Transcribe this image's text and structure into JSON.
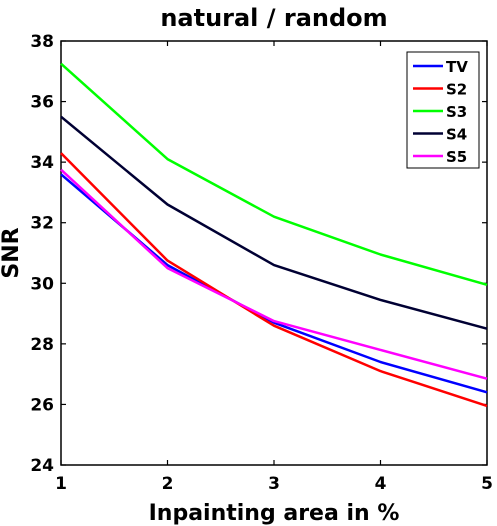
{
  "chart_data": {
    "type": "line",
    "title": "natural / random",
    "xlabel": "Inpainting area in %",
    "ylabel": "SNR",
    "x": [
      1,
      2,
      3,
      4,
      5
    ],
    "xlim": [
      1,
      5
    ],
    "ylim": [
      24,
      38
    ],
    "xticks": [
      "1",
      "2",
      "3",
      "4",
      "5"
    ],
    "yticks": [
      "24",
      "26",
      "28",
      "30",
      "32",
      "34",
      "36",
      "38"
    ],
    "grid": false,
    "legend_position": "top-right",
    "series": [
      {
        "name": "TV",
        "color": "#0000ff",
        "values": [
          33.6,
          30.6,
          28.7,
          27.4,
          26.4
        ]
      },
      {
        "name": "S2",
        "color": "#ff0000",
        "values": [
          34.3,
          30.75,
          28.6,
          27.1,
          25.95
        ]
      },
      {
        "name": "S3",
        "color": "#00ff00",
        "values": [
          37.25,
          34.1,
          32.2,
          30.95,
          29.95
        ]
      },
      {
        "name": "S4",
        "color": "#000033",
        "values": [
          35.5,
          32.6,
          30.6,
          29.45,
          28.5
        ]
      },
      {
        "name": "S5",
        "color": "#ff00ff",
        "values": [
          33.75,
          30.5,
          28.75,
          27.8,
          26.85
        ]
      }
    ]
  }
}
